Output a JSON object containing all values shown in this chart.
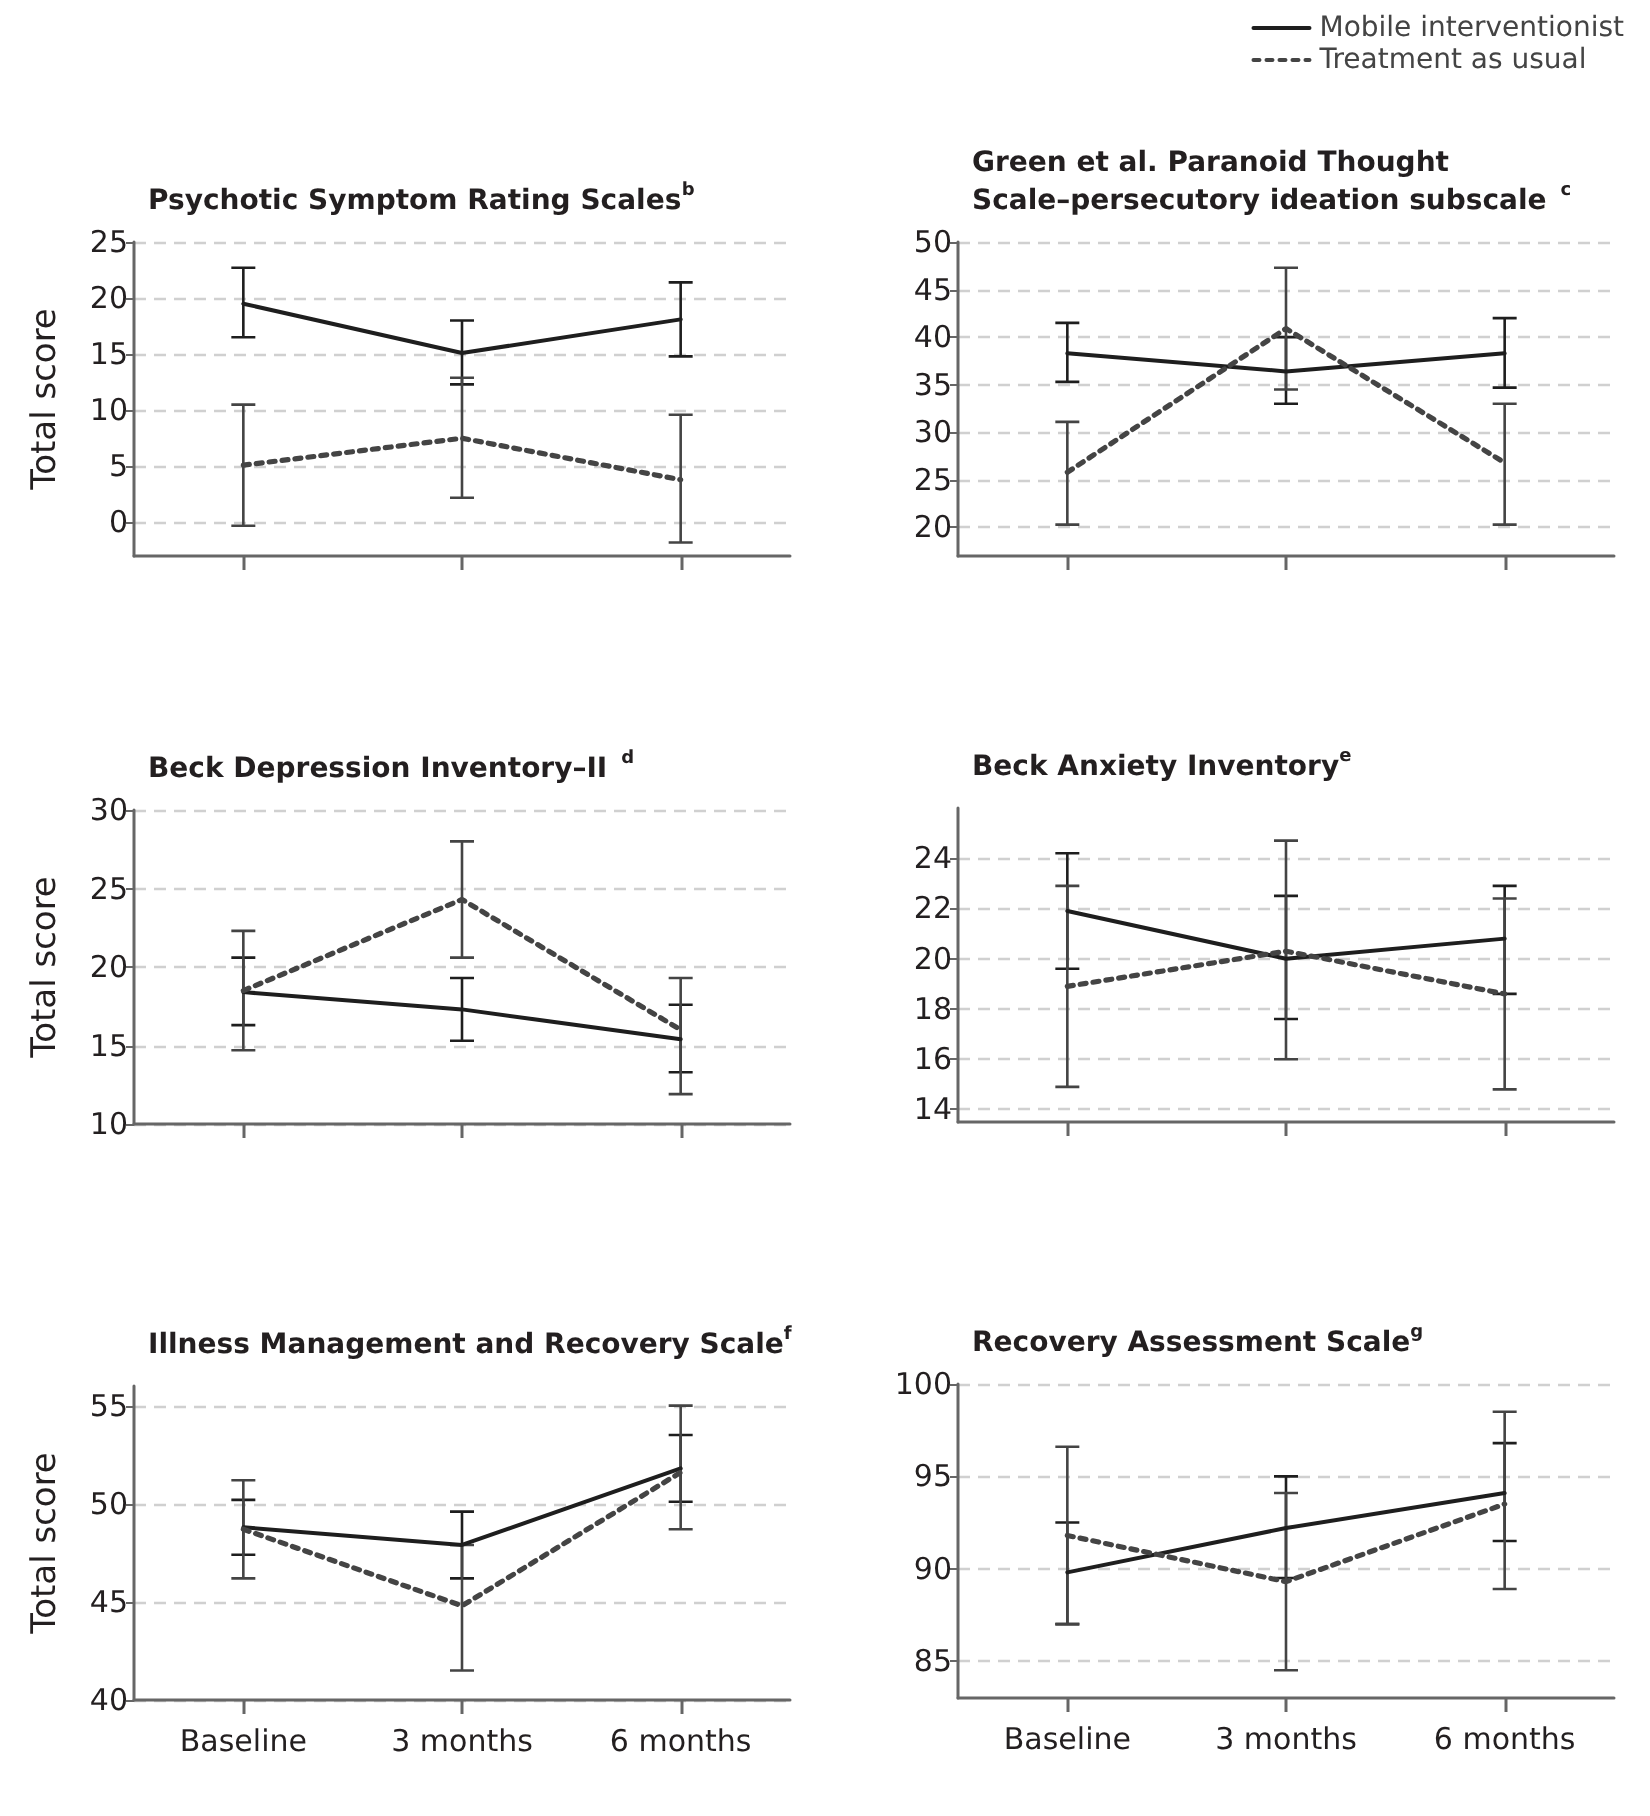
{
  "chart_data": [
    {
      "type": "line",
      "title": "Psychotic Symptom Rating Scales$^{b}$",
      "ylabel": "Total score",
      "categories": [
        "Baseline",
        "3 months",
        "6 months"
      ],
      "ylim": [
        -3,
        25
      ],
      "yticks": [
        0,
        5,
        10,
        15,
        20,
        25
      ],
      "grid": "y",
      "tick_labels": "y",
      "marker": "none",
      "legend": false,
      "series": [
        {
          "color": "#1e1e1e",
          "line_style": "solid",
          "values": [
            19.5,
            15.1,
            18.1
          ],
          "errors": [
            [
              16.5,
              22.7
            ],
            [
              12.3,
              18.0
            ],
            [
              14.8,
              21.4
            ]
          ]
        },
        {
          "color": "#444444",
          "line_style": "dotted",
          "values": [
            5.1,
            7.5,
            3.8
          ],
          "errors": [
            [
              -0.3,
              10.5
            ],
            [
              2.2,
              12.9
            ],
            [
              -1.8,
              9.6
            ]
          ]
        }
      ]
    },
    {
      "type": "line",
      "title": "Green et al. Paranoid Thought Scale–persecutory ideation subscale$^{c}$",
      "categories": [
        "Baseline",
        "3 months",
        "6 months"
      ],
      "ylim": [
        17,
        50
      ],
      "yticks": [
        20,
        25,
        30,
        35,
        40,
        45,
        50
      ],
      "grid": "y",
      "tick_labels": "y",
      "marker": "none",
      "legend": "top right",
      "series": [
        {
          "name": "Mobile interventionist",
          "color": "#1e1e1e",
          "line_style": "solid",
          "values": [
            38.3,
            36.4,
            38.3
          ],
          "errors": [
            [
              35.3,
              41.5
            ],
            [
              33.0,
              40.0
            ],
            [
              34.7,
              42.0
            ]
          ]
        },
        {
          "name": "Treatment as usual",
          "color": "#444444",
          "line_style": "dotted",
          "values": [
            25.8,
            40.9,
            26.8
          ],
          "errors": [
            [
              20.3,
              31.1
            ],
            [
              34.5,
              47.3
            ],
            [
              20.3,
              33.0
            ]
          ]
        }
      ]
    },
    {
      "type": "line",
      "title": "Beck Depression Inventory–II$^{d}$",
      "ylabel": "Total score",
      "categories": [
        "Baseline",
        "3 months",
        "6 months"
      ],
      "ylim": [
        10,
        30
      ],
      "yticks": [
        10,
        15,
        20,
        25,
        30
      ],
      "grid": "y",
      "tick_labels": "y",
      "marker": "none",
      "legend": false,
      "series": [
        {
          "color": "#1e1e1e",
          "line_style": "solid",
          "values": [
            18.4,
            17.3,
            15.4
          ],
          "errors": [
            [
              16.3,
              20.6
            ],
            [
              15.3,
              19.3
            ],
            [
              13.3,
              17.6
            ]
          ]
        },
        {
          "color": "#444444",
          "line_style": "dotted",
          "values": [
            18.5,
            24.3,
            16.0
          ],
          "errors": [
            [
              14.7,
              22.3
            ],
            [
              20.6,
              28.0
            ],
            [
              11.9,
              19.3
            ]
          ]
        }
      ]
    },
    {
      "type": "line",
      "title": "Beck Anxiety Inventory$^{e}$",
      "categories": [
        "Baseline",
        "3 months",
        "6 months"
      ],
      "ylim": [
        13.5,
        26
      ],
      "yticks": [
        14,
        16,
        18,
        20,
        22,
        24
      ],
      "grid": "y",
      "tick_labels": "y",
      "marker": "none",
      "legend": false,
      "series": [
        {
          "color": "#1e1e1e",
          "line_style": "solid",
          "values": [
            21.9,
            20.0,
            20.8
          ],
          "errors": [
            [
              19.6,
              24.2
            ],
            [
              17.6,
              22.5
            ],
            [
              18.6,
              22.9
            ]
          ]
        },
        {
          "color": "#444444",
          "line_style": "dotted",
          "values": [
            18.9,
            20.3,
            18.6
          ],
          "errors": [
            [
              14.9,
              22.9
            ],
            [
              16.0,
              24.7
            ],
            [
              14.8,
              22.4
            ]
          ]
        }
      ]
    },
    {
      "type": "line",
      "title": "Illness Management and Recovery Scale$^{f}$",
      "ylabel": "Total score",
      "categories": [
        "Baseline",
        "3 months",
        "6 months"
      ],
      "ylim": [
        40,
        56
      ],
      "yticks": [
        40,
        45,
        50,
        55
      ],
      "grid": "y",
      "marker": "none",
      "legend": false,
      "series": [
        {
          "color": "#1e1e1e",
          "line_style": "solid",
          "values": [
            48.8,
            47.9,
            51.8
          ],
          "errors": [
            [
              47.4,
              50.2
            ],
            [
              46.2,
              49.6
            ],
            [
              50.1,
              53.5
            ]
          ]
        },
        {
          "color": "#444444",
          "line_style": "dotted",
          "values": [
            48.7,
            44.8,
            51.6
          ],
          "errors": [
            [
              46.2,
              51.2
            ],
            [
              41.5,
              47.9
            ],
            [
              48.7,
              55.0
            ]
          ]
        }
      ]
    },
    {
      "type": "line",
      "title": "Recovery Assessment Scale$^{g}$",
      "categories": [
        "Baseline",
        "3 months",
        "6 months"
      ],
      "ylim": [
        83,
        100
      ],
      "yticks": [
        85,
        90,
        95,
        100
      ],
      "grid": "y",
      "marker": "none",
      "legend": false,
      "series": [
        {
          "color": "#1e1e1e",
          "line_style": "solid",
          "values": [
            89.8,
            92.2,
            94.1
          ],
          "errors": [
            [
              87.0,
              92.5
            ],
            [
              89.5,
              95.0
            ],
            [
              91.5,
              96.8
            ]
          ]
        },
        {
          "color": "#444444",
          "line_style": "dotted",
          "values": [
            91.8,
            89.3,
            93.5
          ],
          "errors": [
            [
              87.0,
              96.6
            ],
            [
              84.5,
              94.1
            ],
            [
              88.9,
              98.5
            ]
          ]
        }
      ]
    }
  ]
}
